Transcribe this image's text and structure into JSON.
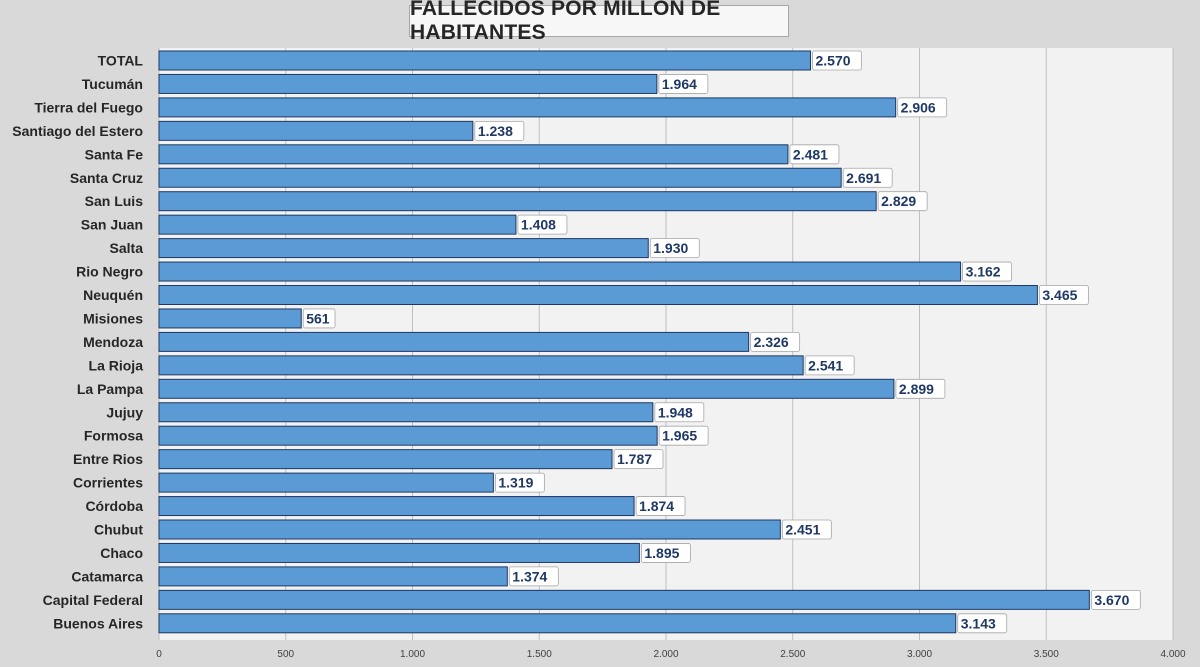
{
  "chart_data": {
    "type": "bar",
    "orientation": "horizontal",
    "title": "FALLECIDOS POR MILLÓN DE HABITANTES",
    "categories": [
      "TOTAL",
      "Tucumán",
      "Tierra del Fuego",
      "Santiago del Estero",
      "Santa Fe",
      "Santa Cruz",
      "San Luis",
      "San Juan",
      "Salta",
      "Rio Negro",
      "Neuquén",
      "Misiones",
      "Mendoza",
      "La Rioja",
      "La Pampa",
      "Jujuy",
      "Formosa",
      "Entre Rios",
      "Corrientes",
      "Córdoba",
      "Chubut",
      "Chaco",
      "Catamarca",
      "Capital Federal",
      "Buenos Aires"
    ],
    "values": [
      2570,
      1964,
      2906,
      1238,
      2481,
      2691,
      2829,
      1408,
      1930,
      3162,
      3465,
      561,
      2326,
      2541,
      2899,
      1948,
      1965,
      1787,
      1319,
      1874,
      2451,
      1895,
      1374,
      3670,
      3143
    ],
    "value_labels": [
      "2.570",
      "1.964",
      "2.906",
      "1.238",
      "2.481",
      "2.691",
      "2.829",
      "1.408",
      "1.930",
      "3.162",
      "3.465",
      "561",
      "2.326",
      "2.541",
      "2.899",
      "1.948",
      "1.965",
      "1.787",
      "1.319",
      "1.874",
      "2.451",
      "1.895",
      "1.374",
      "3.670",
      "3.143"
    ],
    "xlim": [
      0,
      4000
    ],
    "x_ticks": [
      0,
      500,
      1000,
      1500,
      2000,
      2500,
      3000,
      3500,
      4000
    ],
    "x_tick_labels": [
      "0",
      "500",
      "1.000",
      "1.500",
      "2.000",
      "2.500",
      "3.000",
      "3.500",
      "4.000"
    ],
    "grid": "vertical",
    "legend": "none",
    "colors": {
      "bar_fill": "#5b9bd5",
      "bar_stroke": "#1f3864",
      "label_text": "#1f3864",
      "plot_bg": "#f2f2f2",
      "page_bg": "#d9d9d9",
      "gridline": "#bfbfbf"
    }
  }
}
